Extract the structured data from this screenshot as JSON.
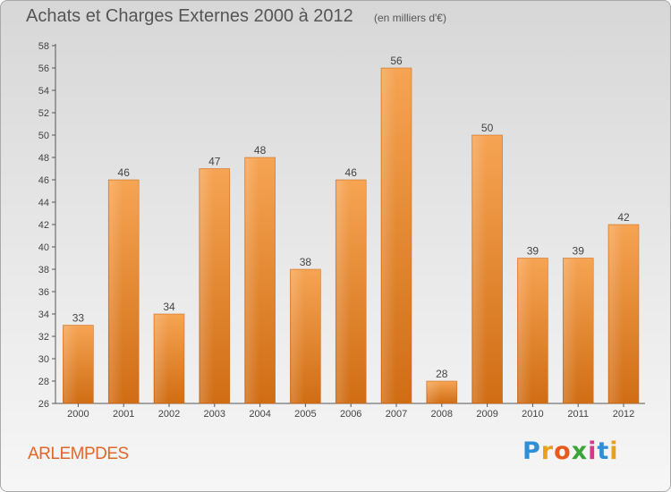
{
  "chart_data": {
    "type": "bar",
    "title": "Achats et Charges Externes 2000 à 2012",
    "subtitle": "(en milliers d'€)",
    "categories": [
      "2000",
      "2001",
      "2002",
      "2003",
      "2004",
      "2005",
      "2006",
      "2007",
      "2008",
      "2009",
      "2010",
      "2011",
      "2012"
    ],
    "values": [
      33,
      46,
      34,
      47,
      48,
      38,
      46,
      56,
      28,
      50,
      39,
      39,
      42
    ],
    "ylim": [
      26,
      58
    ],
    "yticks": [
      26,
      28,
      30,
      32,
      34,
      36,
      38,
      40,
      42,
      44,
      46,
      48,
      50,
      52,
      54,
      56,
      58
    ],
    "xlabel": "",
    "ylabel": "",
    "grid": false,
    "bar_color": "#f08a2a"
  },
  "commune": "ARLEMPDES",
  "logo": {
    "letters": [
      "P",
      "r",
      "o",
      "x",
      "i",
      "t",
      "i"
    ],
    "colors": [
      "#2f8fd6",
      "#e8a21a",
      "#e8591e",
      "#3aa33a",
      "#d33a8a",
      "#2f8fd6",
      "#e8a21a"
    ]
  }
}
